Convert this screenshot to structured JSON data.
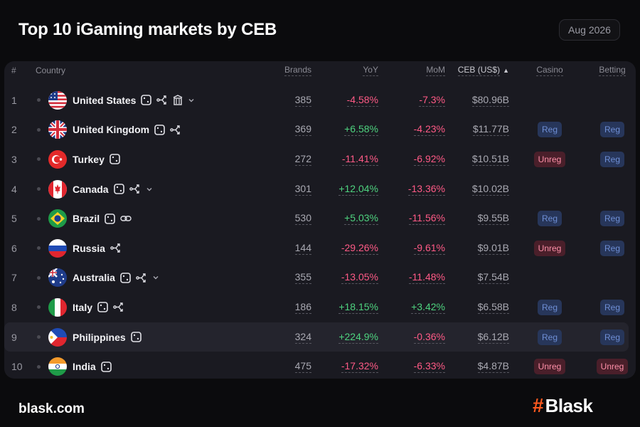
{
  "title": "Top 10 iGaming markets by CEB",
  "period": "Aug 2026",
  "columns": {
    "rank": "#",
    "country": "Country",
    "brands": "Brands",
    "yoy": "YoY",
    "mom": "MoM",
    "ceb": "CEB (US$)",
    "casino": "Casino",
    "betting": "Betting"
  },
  "colors": {
    "positive": "#4ed37f",
    "negative": "#ff5a86",
    "reg_badge_bg": "#27365a",
    "unreg_badge_bg": "#4a1f2a",
    "brand_accent": "#ff5a1f"
  },
  "rows": [
    {
      "rank": "1",
      "country": "United States",
      "flag": "us",
      "icons": [
        "dice-icon",
        "branch-icon",
        "building-icon",
        "chevron-down-icon"
      ],
      "brands": "385",
      "yoy": "-4.58%",
      "mom": "-7.3%",
      "ceb": "$80.96B",
      "casino": "",
      "betting": ""
    },
    {
      "rank": "2",
      "country": "United Kingdom",
      "flag": "gb",
      "icons": [
        "dice-icon",
        "branch-icon"
      ],
      "brands": "369",
      "yoy": "+6.58%",
      "mom": "-4.23%",
      "ceb": "$11.77B",
      "casino": "Reg",
      "betting": "Reg"
    },
    {
      "rank": "3",
      "country": "Turkey",
      "flag": "tr",
      "icons": [
        "dice-icon"
      ],
      "brands": "272",
      "yoy": "-11.41%",
      "mom": "-6.92%",
      "ceb": "$10.51B",
      "casino": "Unreg",
      "betting": "Reg"
    },
    {
      "rank": "4",
      "country": "Canada",
      "flag": "ca",
      "icons": [
        "dice-icon",
        "branch-icon",
        "chevron-down-icon"
      ],
      "brands": "301",
      "yoy": "+12.04%",
      "mom": "-13.36%",
      "ceb": "$10.02B",
      "casino": "",
      "betting": ""
    },
    {
      "rank": "5",
      "country": "Brazil",
      "flag": "br",
      "icons": [
        "dice-icon",
        "link-icon"
      ],
      "brands": "530",
      "yoy": "+5.03%",
      "mom": "-11.56%",
      "ceb": "$9.55B",
      "casino": "Reg",
      "betting": "Reg"
    },
    {
      "rank": "6",
      "country": "Russia",
      "flag": "ru",
      "icons": [
        "branch-icon"
      ],
      "brands": "144",
      "yoy": "-29.26%",
      "mom": "-9.61%",
      "ceb": "$9.01B",
      "casino": "Unreg",
      "betting": "Reg"
    },
    {
      "rank": "7",
      "country": "Australia",
      "flag": "au",
      "icons": [
        "dice-icon",
        "branch-icon",
        "chevron-down-icon"
      ],
      "brands": "355",
      "yoy": "-13.05%",
      "mom": "-11.48%",
      "ceb": "$7.54B",
      "casino": "",
      "betting": ""
    },
    {
      "rank": "8",
      "country": "Italy",
      "flag": "it",
      "icons": [
        "dice-icon",
        "branch-icon"
      ],
      "brands": "186",
      "yoy": "+18.15%",
      "mom": "+3.42%",
      "ceb": "$6.58B",
      "casino": "Reg",
      "betting": "Reg"
    },
    {
      "rank": "9",
      "country": "Philippines",
      "flag": "ph",
      "icons": [
        "dice-icon"
      ],
      "brands": "324",
      "yoy": "+224.9%",
      "mom": "-0.36%",
      "ceb": "$6.12B",
      "casino": "Reg",
      "betting": "Reg",
      "highlighted": true
    },
    {
      "rank": "10",
      "country": "India",
      "flag": "in",
      "icons": [
        "dice-icon"
      ],
      "brands": "475",
      "yoy": "-17.32%",
      "mom": "-6.33%",
      "ceb": "$4.87B",
      "casino": "Unreg",
      "betting": "Unreg"
    }
  ],
  "footer": {
    "site": "blask.com",
    "logo_mark": "#",
    "logo_text": "Blask"
  }
}
